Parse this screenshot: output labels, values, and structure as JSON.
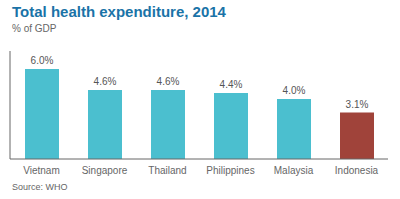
{
  "chart_data": {
    "type": "bar",
    "title": "Total health expenditure, 2014",
    "ylabel": "% of GDP",
    "annotations": [
      "Source: WHO"
    ],
    "categories": [
      "Vietnam",
      "Singapore",
      "Thailand",
      "Philippines",
      "Malaysia",
      "Indonesia"
    ],
    "values": [
      6.0,
      4.6,
      4.6,
      4.4,
      4.0,
      3.1
    ],
    "value_labels": [
      "6.0%",
      "4.6%",
      "4.6%",
      "4.4%",
      "4.0%",
      "3.1%"
    ],
    "colors": [
      "#4BBFCF",
      "#4BBFCF",
      "#4BBFCF",
      "#4BBFCF",
      "#4BBFCF",
      "#A0433A"
    ],
    "ylim": [
      0,
      7.2
    ],
    "grid": false,
    "data_labels": true,
    "tick_labels": "x"
  }
}
